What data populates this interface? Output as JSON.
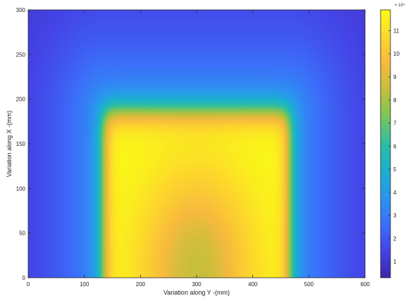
{
  "chart_data": {
    "type": "heatmap",
    "title": "",
    "xlabel": "Variation along Y -(mm)",
    "ylabel": "Variation along X -(mm)",
    "xlim": [
      0,
      600
    ],
    "ylim": [
      0,
      300
    ],
    "xticks": [
      "0",
      "100",
      "200",
      "300",
      "400",
      "500",
      "600"
    ],
    "yticks": [
      "0",
      "50",
      "100",
      "150",
      "200",
      "250",
      "300"
    ],
    "colormap": "parula",
    "colormap_stops": [
      "#3e26a8",
      "#4443e6",
      "#3b6ffa",
      "#2b96ee",
      "#1ab0cf",
      "#2dbea3",
      "#78c65a",
      "#c2bf3c",
      "#f7ba3d",
      "#fdd72c",
      "#f9fb15"
    ],
    "colorbar": {
      "exponent_label": "× 10⁴",
      "ticks": [
        "1",
        "2",
        "3",
        "4",
        "5",
        "6",
        "7",
        "8",
        "9",
        "10",
        "11"
      ],
      "range": [
        0.3,
        11.9
      ]
    },
    "field_description": {
      "min_value": 0.3,
      "max_value": 11.9,
      "hot_region_y_mm": [
        135,
        465
      ],
      "hot_region_x_mm": [
        0,
        185
      ],
      "center_dip_at": [
        300,
        10
      ],
      "center_dip_value": 8.5
    }
  }
}
